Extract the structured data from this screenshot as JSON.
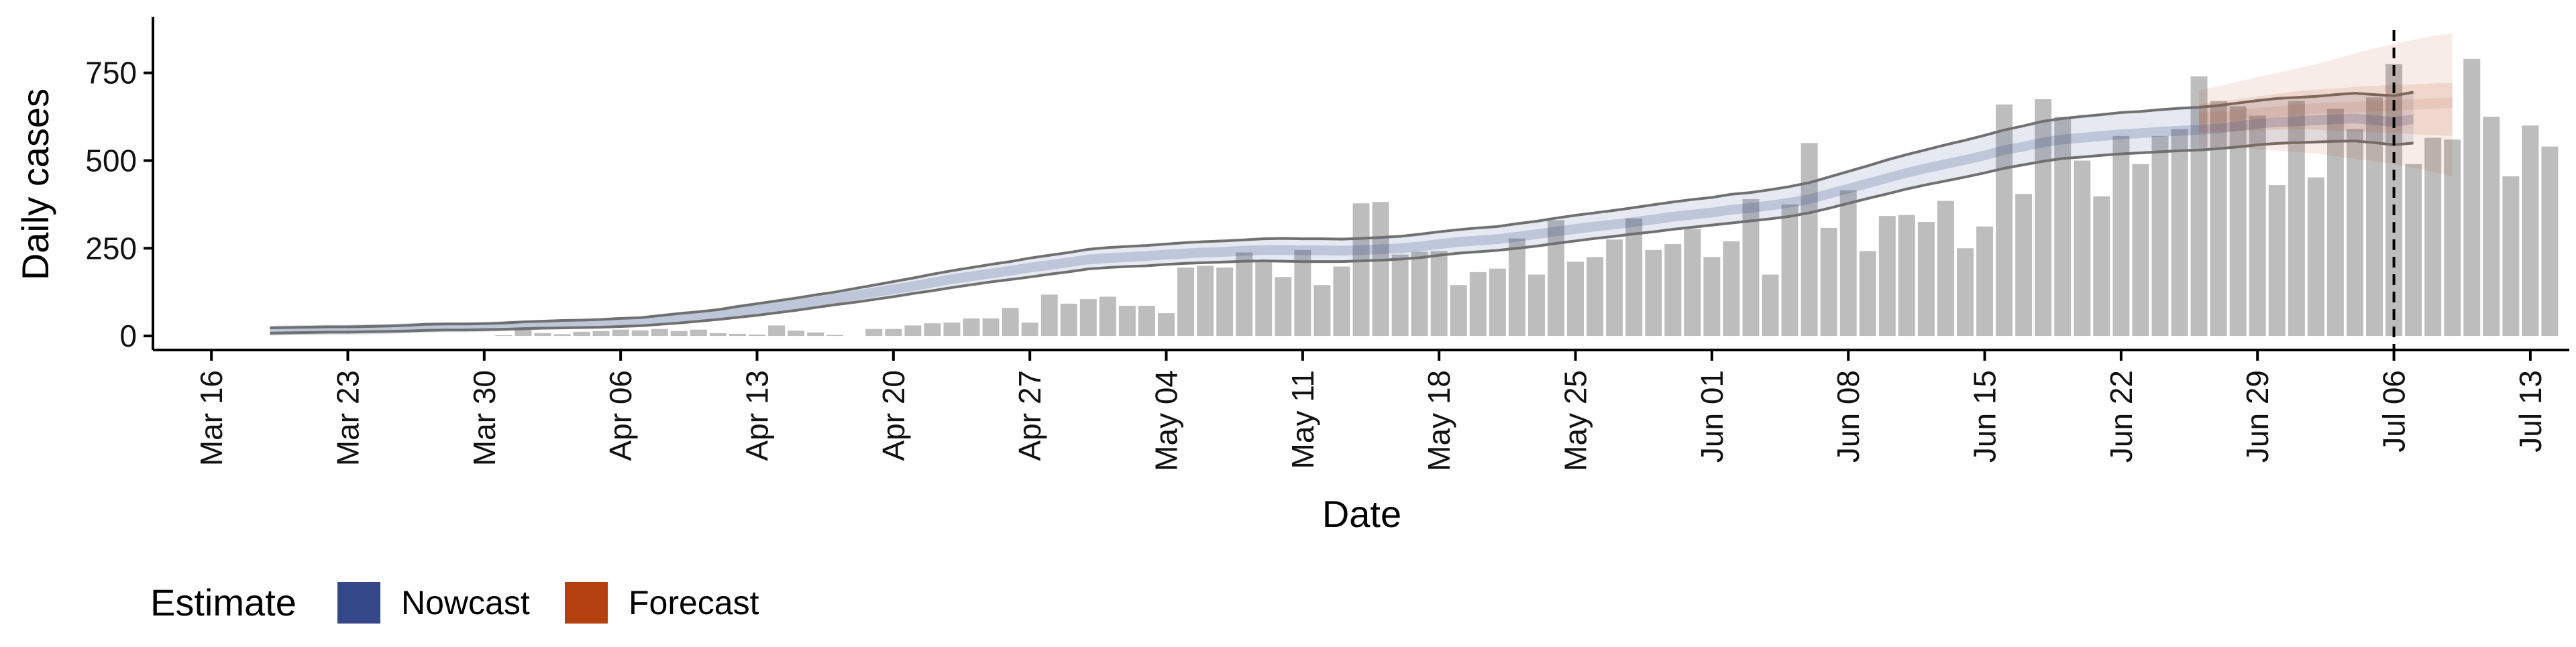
{
  "chart_data": {
    "type": "bar",
    "title": "",
    "xlabel": "Date",
    "ylabel": "Daily cases",
    "x_tick_labels": [
      "Mar 16",
      "Mar 23",
      "Mar 30",
      "Apr 06",
      "Apr 13",
      "Apr 20",
      "Apr 27",
      "May 04",
      "May 11",
      "May 18",
      "May 25",
      "Jun 01",
      "Jun 08",
      "Jun 15",
      "Jun 22",
      "Jun 29",
      "Jul 06",
      "Jul 13"
    ],
    "x_tick_dates": [
      "2020-03-16",
      "2020-03-23",
      "2020-03-30",
      "2020-04-06",
      "2020-04-13",
      "2020-04-20",
      "2020-04-27",
      "2020-05-04",
      "2020-05-11",
      "2020-05-18",
      "2020-05-25",
      "2020-06-01",
      "2020-06-08",
      "2020-06-15",
      "2020-06-22",
      "2020-06-29",
      "2020-07-06",
      "2020-07-13"
    ],
    "y_ticks": [
      0,
      250,
      500,
      750
    ],
    "ylim": [
      -40,
      910
    ],
    "xlim": [
      "2020-03-13",
      "2020-07-15"
    ],
    "grid": false,
    "legend_position": "bottom-left",
    "legend": {
      "title": "Estimate",
      "items": [
        {
          "label": "Nowcast",
          "color": "#34488a"
        },
        {
          "label": "Forecast",
          "color": "#b5400f"
        }
      ]
    },
    "bar_color": "#bdbdbd",
    "forecast_start_line_date": "2020-07-06",
    "bars": {
      "name": "Reported cases",
      "start_date": "2020-03-19",
      "values": [
        0,
        0,
        0,
        0,
        0,
        0,
        0,
        0,
        0,
        0,
        0,
        0,
        2,
        20,
        8,
        5,
        12,
        14,
        18,
        16,
        20,
        14,
        18,
        8,
        6,
        4,
        30,
        15,
        10,
        3,
        0,
        20,
        20,
        30,
        36,
        38,
        50,
        50,
        80,
        38,
        118,
        92,
        105,
        112,
        86,
        86,
        65,
        195,
        200,
        195,
        238,
        216,
        168,
        245,
        145,
        198,
        378,
        382,
        232,
        240,
        242,
        145,
        182,
        192,
        278,
        175,
        330,
        212,
        225,
        275,
        335,
        245,
        262,
        305,
        225,
        270,
        390,
        175,
        375,
        550,
        308,
        415,
        242,
        342,
        345,
        325,
        385,
        250,
        312,
        660,
        405,
        675,
        625,
        500,
        398,
        570,
        490,
        570,
        590,
        740,
        670,
        655,
        628,
        430,
        670,
        452,
        648,
        590,
        680,
        775,
        490,
        565,
        560,
        790,
        625,
        455,
        600,
        540
      ]
    },
    "nowcast": {
      "start_date": "2020-03-19",
      "end_date": "2020-06-26",
      "mid": [
        15,
        16,
        17,
        18,
        18,
        19,
        20,
        22,
        24,
        25,
        25,
        26,
        28,
        30,
        32,
        33,
        34,
        36,
        38,
        40,
        45,
        50,
        55,
        60,
        68,
        75,
        82,
        90,
        98,
        106,
        115,
        124,
        133,
        142,
        152,
        162,
        170,
        178,
        186,
        195,
        202,
        210,
        218,
        222,
        225,
        228,
        232,
        235,
        238,
        240,
        243,
        245,
        245,
        244,
        244,
        243,
        245,
        247,
        250,
        255,
        262,
        268,
        272,
        276,
        283,
        290,
        298,
        305,
        312,
        318,
        325,
        332,
        340,
        346,
        352,
        360,
        365,
        372,
        380,
        390,
        405,
        420,
        435,
        450,
        465,
        478,
        490,
        502,
        515,
        530,
        540,
        552,
        560,
        565,
        570,
        575,
        578,
        582,
        585,
        588,
        592,
        598,
        605,
        610,
        612,
        615,
        618,
        620,
        615,
        610,
        618
      ],
      "outer_lo": [
        8,
        9,
        10,
        11,
        11,
        12,
        13,
        14,
        16,
        17,
        17,
        18,
        19,
        21,
        22,
        23,
        24,
        25,
        27,
        29,
        33,
        37,
        42,
        47,
        53,
        59,
        66,
        73,
        81,
        89,
        96,
        104,
        112,
        121,
        129,
        138,
        146,
        154,
        161,
        168,
        176,
        183,
        191,
        195,
        198,
        200,
        204,
        207,
        209,
        211,
        213,
        214,
        213,
        212,
        212,
        212,
        214,
        216,
        219,
        223,
        230,
        236,
        240,
        244,
        250,
        256,
        264,
        271,
        278,
        284,
        291,
        297,
        304,
        310,
        316,
        322,
        328,
        334,
        341,
        351,
        364,
        378,
        392,
        405,
        419,
        431,
        442,
        453,
        465,
        478,
        488,
        498,
        506,
        510,
        515,
        519,
        522,
        525,
        528,
        530,
        534,
        539,
        545,
        549,
        551,
        553,
        555,
        556,
        551,
        545,
        550
      ],
      "outer_hi": [
        23,
        24,
        25,
        26,
        26,
        27,
        28,
        30,
        33,
        34,
        34,
        35,
        37,
        40,
        42,
        44,
        45,
        47,
        50,
        52,
        58,
        64,
        69,
        75,
        84,
        92,
        100,
        108,
        117,
        125,
        135,
        145,
        155,
        165,
        176,
        186,
        195,
        204,
        212,
        222,
        230,
        238,
        247,
        252,
        255,
        258,
        262,
        266,
        269,
        271,
        274,
        277,
        278,
        277,
        277,
        276,
        278,
        281,
        284,
        290,
        297,
        303,
        308,
        312,
        320,
        327,
        336,
        344,
        351,
        358,
        366,
        374,
        382,
        389,
        395,
        404,
        409,
        417,
        426,
        437,
        453,
        469,
        485,
        502,
        517,
        531,
        545,
        558,
        572,
        587,
        599,
        612,
        620,
        626,
        631,
        637,
        640,
        645,
        649,
        652,
        657,
        664,
        671,
        677,
        680,
        683,
        688,
        692,
        688,
        685,
        695
      ],
      "band_color": "#34488a",
      "line_color": "#707070"
    },
    "forecast": {
      "start_date": "2020-06-26",
      "end_date": "2020-07-09",
      "mid": [
        620,
        625,
        630,
        635,
        640,
        645,
        648,
        650,
        652,
        655,
        658,
        660,
        663,
        665
      ],
      "inner_lo": [
        580,
        582,
        584,
        586,
        588,
        590,
        588,
        585,
        582,
        580,
        578,
        575,
        573,
        570
      ],
      "inner_hi": [
        660,
        668,
        675,
        683,
        690,
        698,
        702,
        706,
        710,
        713,
        716,
        718,
        720,
        722
      ],
      "outer_lo": [
        540,
        538,
        535,
        532,
        528,
        525,
        520,
        512,
        505,
        498,
        490,
        480,
        468,
        455
      ],
      "outer_hi": [
        700,
        712,
        725,
        738,
        750,
        762,
        775,
        790,
        805,
        820,
        832,
        845,
        855,
        862
      ],
      "color": "#b5400f"
    }
  }
}
